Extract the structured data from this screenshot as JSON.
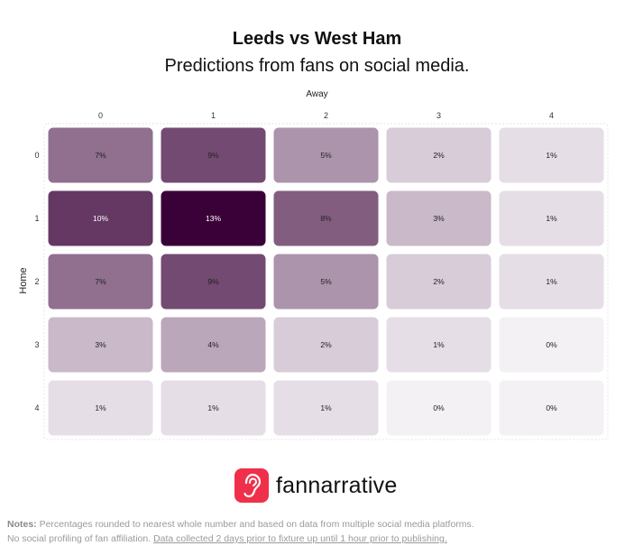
{
  "header": {
    "title": "Leeds vs West Ham",
    "subtitle": "Predictions from fans on social media."
  },
  "chart_data": {
    "type": "heatmap",
    "xlabel": "Away",
    "ylabel": "Home",
    "x_categories": [
      "0",
      "1",
      "2",
      "3",
      "4"
    ],
    "y_categories": [
      "0",
      "1",
      "2",
      "3",
      "4"
    ],
    "values": [
      [
        7,
        9,
        5,
        2,
        1
      ],
      [
        10,
        13,
        8,
        3,
        1
      ],
      [
        7,
        9,
        5,
        2,
        1
      ],
      [
        3,
        4,
        2,
        1,
        0
      ],
      [
        1,
        1,
        1,
        0,
        0
      ]
    ],
    "value_suffix": "%",
    "color_high": "#3a0038",
    "color_low": "#f4f1f4",
    "grid": false,
    "legend": "none"
  },
  "brand": {
    "name": "fannarrative",
    "icon": "ear-icon",
    "color": "#f0304a"
  },
  "notes": {
    "label": "Notes:",
    "line1": "Percentages rounded to nearest whole number and based on data from multiple social media platforms.",
    "line2_plain": "No social profiling of fan affiliation.",
    "line2_underlined": "Data collected 2 days prior to fixture up until 1 hour prior to publishing."
  }
}
